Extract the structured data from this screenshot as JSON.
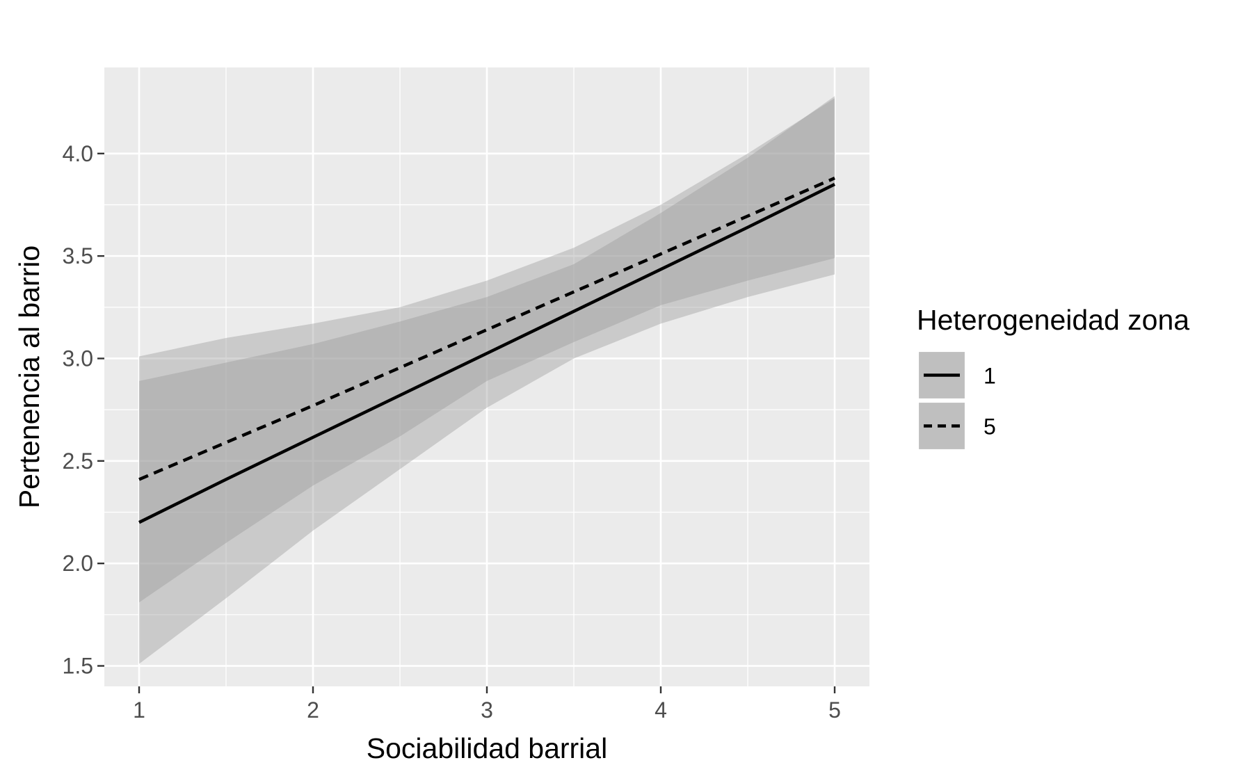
{
  "chart_data": {
    "type": "line",
    "xlabel": "Sociabilidad barrial",
    "ylabel": "Pertenencia al barrio",
    "xlim": [
      0.8,
      5.2
    ],
    "ylim": [
      1.4,
      4.42
    ],
    "xticks": [
      1,
      2,
      3,
      4,
      5
    ],
    "xtick_labels": [
      "1",
      "2",
      "3",
      "4",
      "5"
    ],
    "yticks": [
      1.5,
      2.0,
      2.5,
      3.0,
      3.5,
      4.0
    ],
    "ytick_labels": [
      "1.5",
      "2.0",
      "2.5",
      "3.0",
      "3.5",
      "4.0"
    ],
    "grid": true,
    "legend": {
      "title": "Heterogeneidad zona",
      "placement": "right"
    },
    "series": [
      {
        "name": "1",
        "linestyle": "solid",
        "x": [
          1,
          1.5,
          2,
          2.5,
          3,
          3.5,
          4,
          4.5,
          5
        ],
        "y": [
          2.2,
          2.41,
          2.615,
          2.82,
          3.025,
          3.23,
          3.435,
          3.64,
          3.85
        ],
        "ci_lower": [
          1.51,
          1.83,
          2.16,
          2.46,
          2.76,
          3.0,
          3.17,
          3.3,
          3.41
        ],
        "ci_upper": [
          2.89,
          2.98,
          3.07,
          3.18,
          3.3,
          3.46,
          3.71,
          3.98,
          4.28
        ]
      },
      {
        "name": "5",
        "linestyle": "dashed",
        "x": [
          1,
          1.5,
          2,
          2.5,
          3,
          3.5,
          4,
          4.5,
          5
        ],
        "y": [
          2.41,
          2.59,
          2.77,
          2.955,
          3.14,
          3.325,
          3.51,
          3.695,
          3.88
        ],
        "ci_lower": [
          1.81,
          2.1,
          2.38,
          2.62,
          2.89,
          3.08,
          3.26,
          3.38,
          3.49
        ],
        "ci_upper": [
          3.01,
          3.1,
          3.17,
          3.25,
          3.38,
          3.54,
          3.75,
          4.0,
          4.27
        ]
      }
    ],
    "colors": {
      "panel": "#ebebeb",
      "grid": "#ffffff",
      "ribbon": "#999999",
      "line": "#000000",
      "legend_key": "#d9d9d9"
    }
  }
}
